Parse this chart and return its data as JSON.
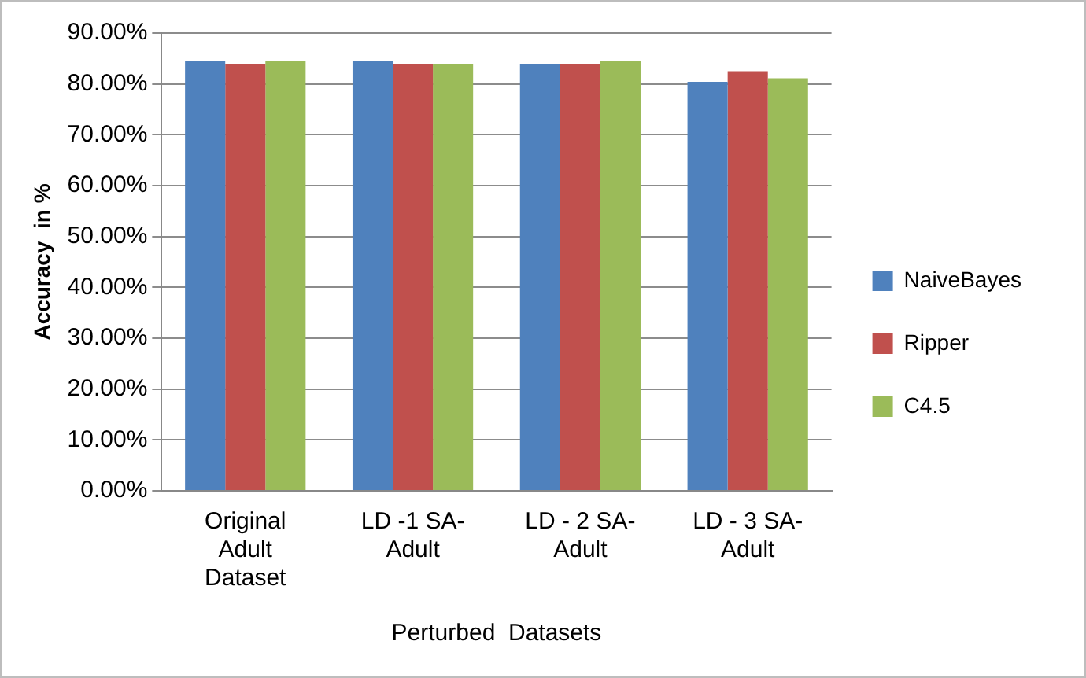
{
  "chart_data": {
    "type": "bar",
    "xlabel": "Perturbed  Datasets",
    "ylabel": "Accuracy  in %",
    "categories": [
      "Original Adult Dataset",
      "LD -1 SA- Adult",
      "LD - 2 SA- Adult",
      "LD - 3 SA- Adult"
    ],
    "series": [
      {
        "name": "NaiveBayes",
        "color": "#4f81bd",
        "values": [
          84.6,
          84.6,
          83.9,
          80.4
        ]
      },
      {
        "name": "Ripper",
        "color": "#c0504d",
        "values": [
          83.9,
          83.9,
          83.9,
          82.5
        ]
      },
      {
        "name": "C4.5",
        "color": "#9bbb59",
        "values": [
          84.6,
          83.9,
          84.6,
          81.1
        ]
      }
    ],
    "ylim": [
      0,
      90
    ],
    "yticks": [
      {
        "value": 0,
        "label": "0.00%"
      },
      {
        "value": 10,
        "label": "10.00%"
      },
      {
        "value": 20,
        "label": "20.00%"
      },
      {
        "value": 30,
        "label": "30.00%"
      },
      {
        "value": 40,
        "label": "40.00%"
      },
      {
        "value": 50,
        "label": "50.00%"
      },
      {
        "value": 60,
        "label": "60.00%"
      },
      {
        "value": 70,
        "label": "70.00%"
      },
      {
        "value": 80,
        "label": "80.00%"
      },
      {
        "value": 90,
        "label": "90.00%"
      }
    ],
    "grid": "y",
    "legend": "right"
  }
}
